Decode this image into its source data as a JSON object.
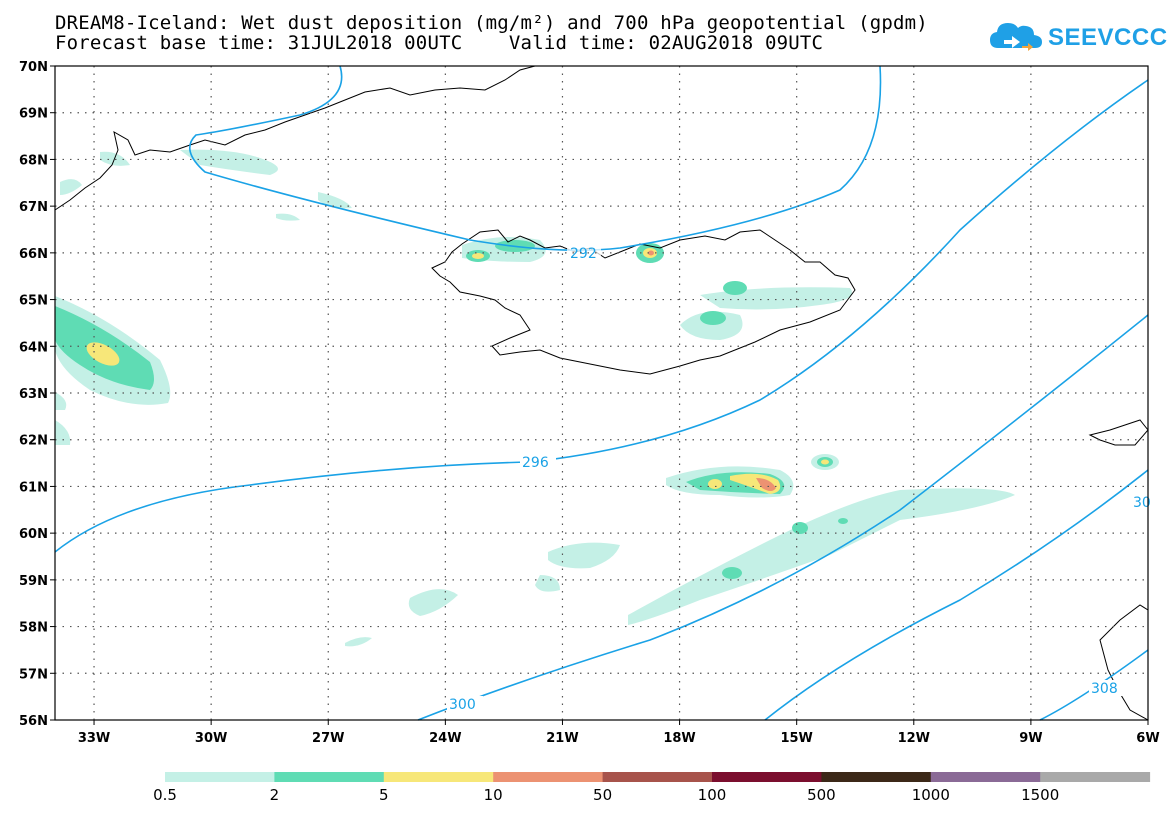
{
  "header": {
    "title_line1": "DREAM8-Iceland: Wet dust deposition (mg/m²) and 700 hPa geopotential (gpdm)",
    "title_line2": "Forecast base time: 31JUL2018 00UTC    Valid time: 02AUG2018 09UTC"
  },
  "logo": {
    "text": "SEEVCCC",
    "icon": "cloud-icon",
    "color": "#1fa0e6"
  },
  "map": {
    "lon_ticks": [
      "33W",
      "30W",
      "27W",
      "24W",
      "21W",
      "18W",
      "15W",
      "12W",
      "9W",
      "6W"
    ],
    "lat_ticks": [
      "70N",
      "69N",
      "68N",
      "67N",
      "66N",
      "65N",
      "64N",
      "63N",
      "62N",
      "61N",
      "60N",
      "59N",
      "58N",
      "57N",
      "56N"
    ],
    "lon_range": [
      -34,
      -6
    ],
    "lat_range": [
      56,
      70
    ],
    "grid": true,
    "contour_color": "#1aa2e6",
    "contour_labels": [
      "292",
      "296",
      "300",
      "308",
      "30"
    ]
  },
  "legend": {
    "levels": [
      "0.5",
      "2",
      "5",
      "10",
      "50",
      "100",
      "500",
      "1000",
      "1500"
    ],
    "colors": [
      "#c4f0e6",
      "#5fdcb4",
      "#f7e779",
      "#ec9272",
      "#a7534b",
      "#7b0e2e",
      "#3c2818",
      "#8a6a96",
      "#a9a9a9"
    ]
  }
}
